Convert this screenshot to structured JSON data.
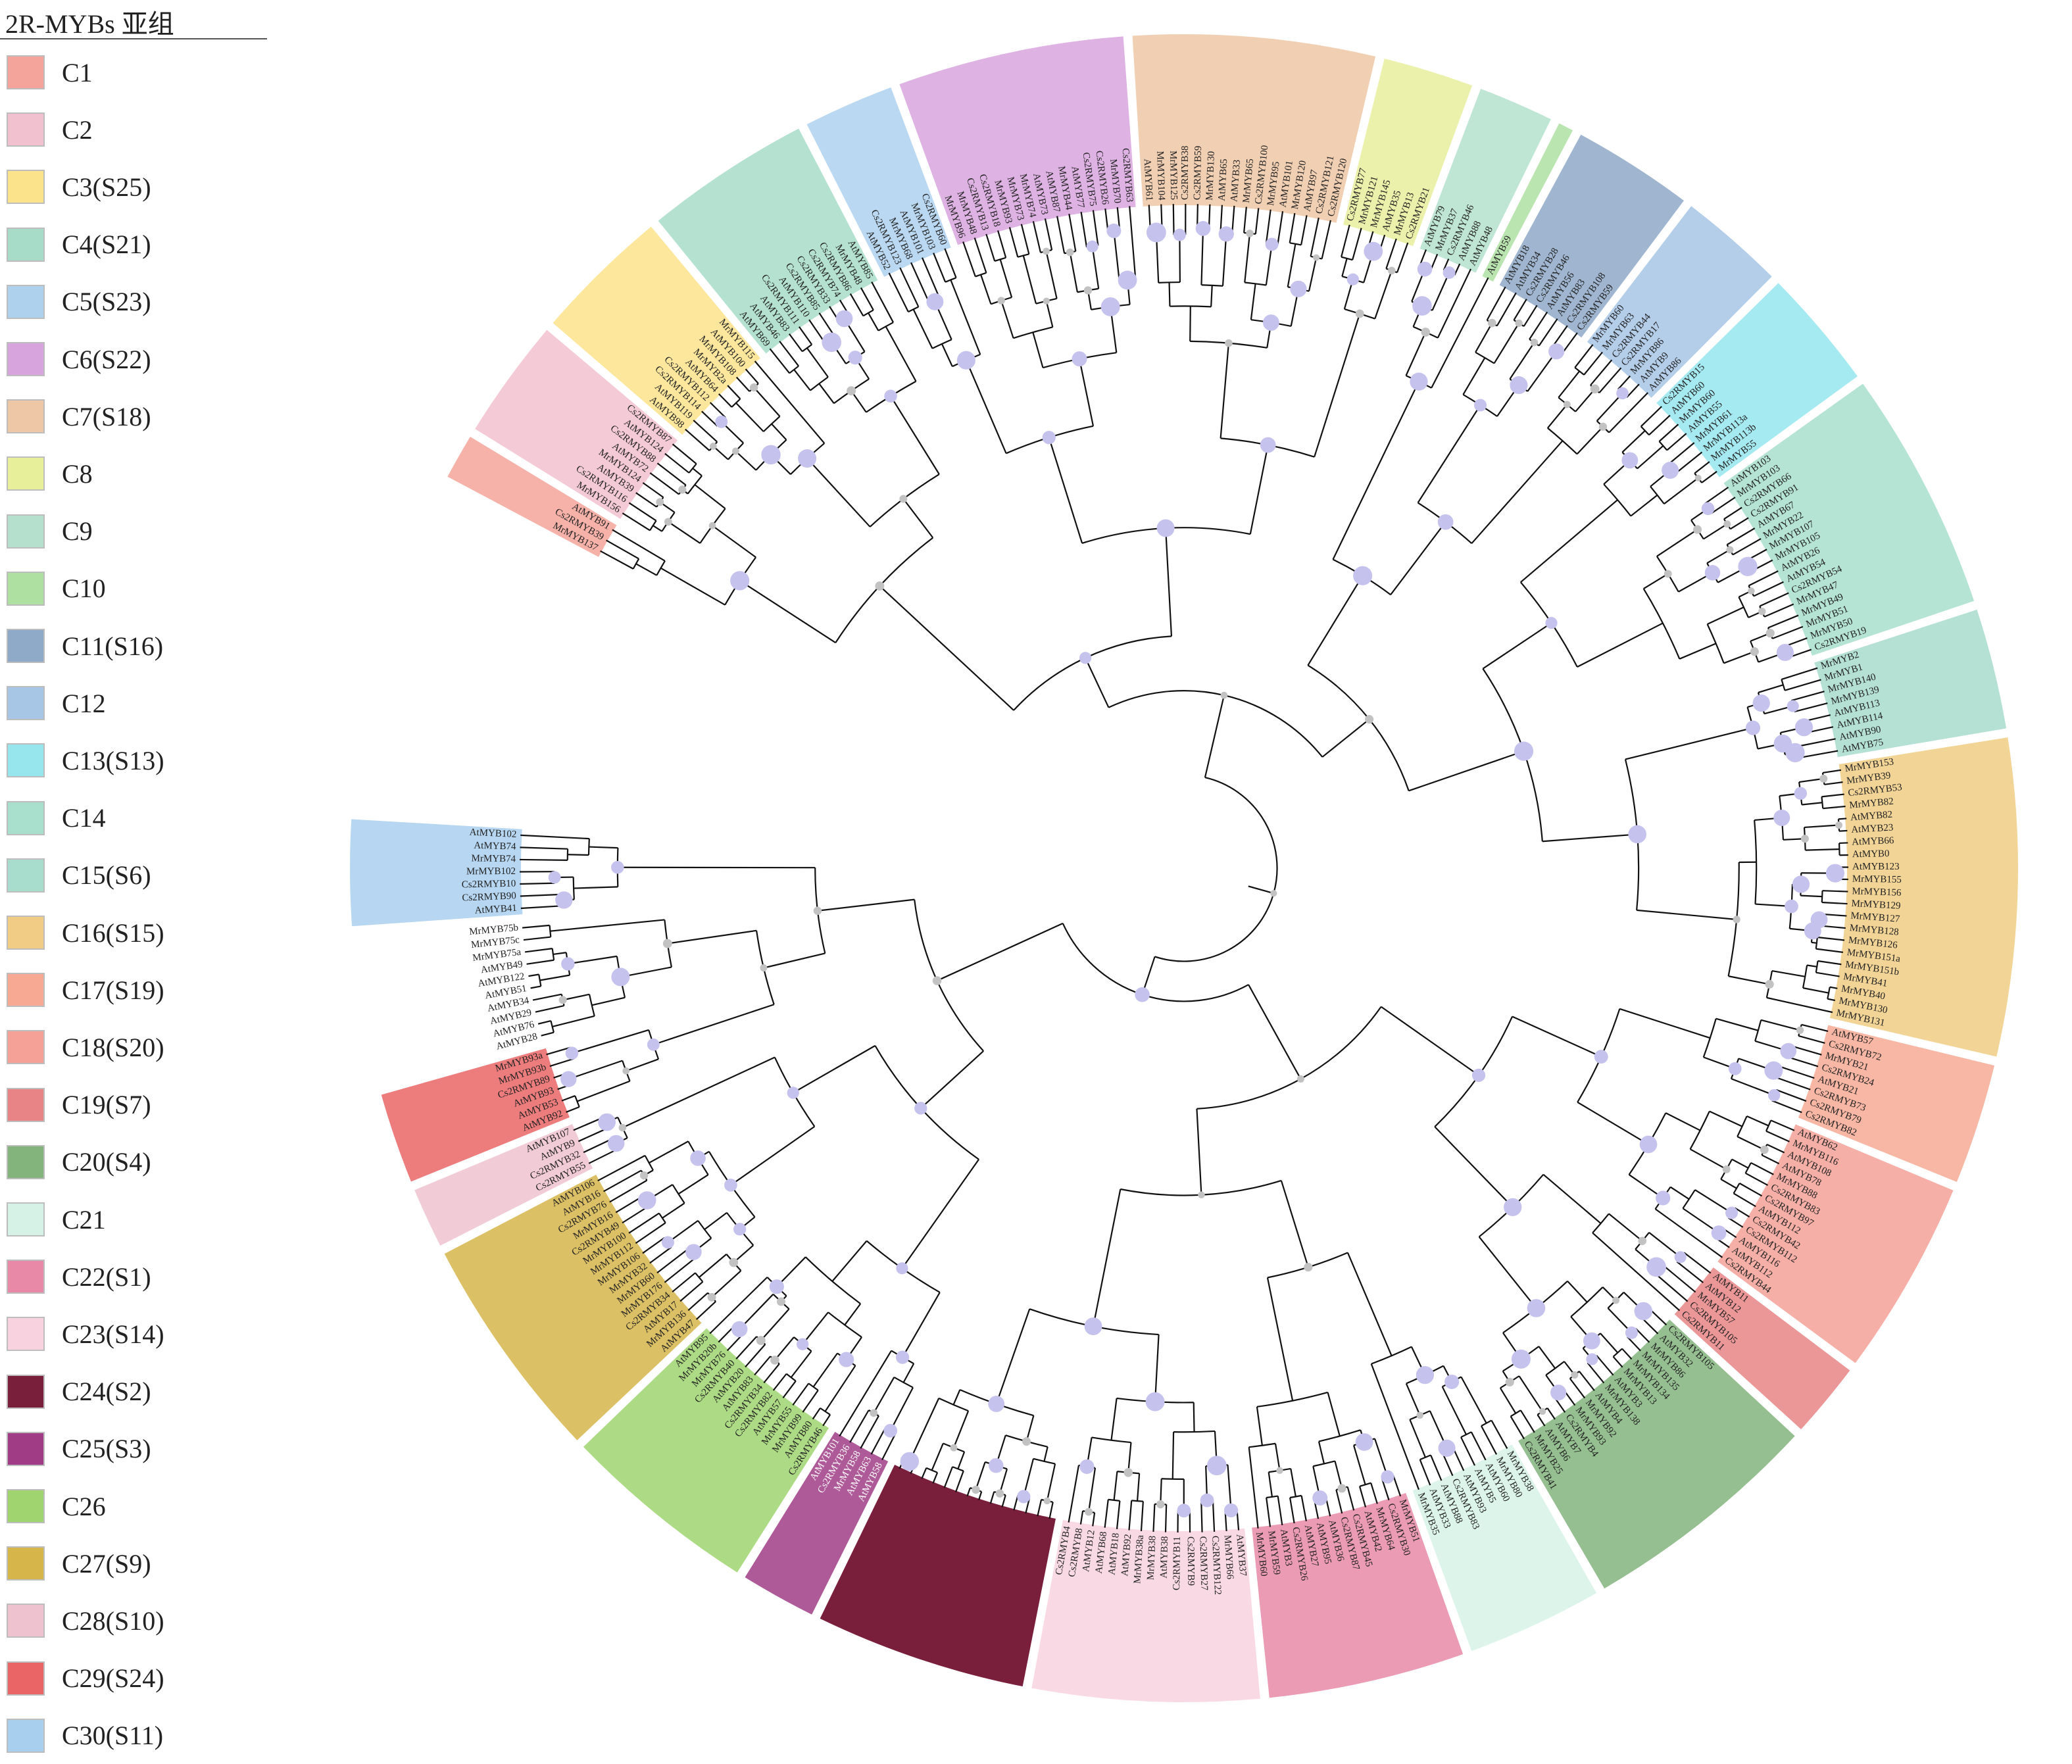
{
  "legend": {
    "title": "2R-MYBs 亚组",
    "items": [
      {
        "label": "C1",
        "color": "#f4a49a"
      },
      {
        "label": "C2",
        "color": "#f2c1cf"
      },
      {
        "label": "C3(S25)",
        "color": "#fbe38c"
      },
      {
        "label": "C4(S21)",
        "color": "#a7dcc8"
      },
      {
        "label": "C5(S23)",
        "color": "#aed1ee"
      },
      {
        "label": "C6(S22)",
        "color": "#d8a4de"
      },
      {
        "label": "C7(S18)",
        "color": "#eec7a6"
      },
      {
        "label": "C8",
        "color": "#e8ef9b"
      },
      {
        "label": "C9",
        "color": "#b4e0cd"
      },
      {
        "label": "C10",
        "color": "#aee0a2"
      },
      {
        "label": "C11(S16)",
        "color": "#8fa9c8"
      },
      {
        "label": "C12",
        "color": "#a7c6e6"
      },
      {
        "label": "C13(S13)",
        "color": "#97e6ee"
      },
      {
        "label": "C14",
        "color": "#a8dfcd"
      },
      {
        "label": "C15(S6)",
        "color": "#a8dccd"
      },
      {
        "label": "C16(S15)",
        "color": "#f0cc84"
      },
      {
        "label": "C17(S19)",
        "color": "#f7a994"
      },
      {
        "label": "C18(S20)",
        "color": "#f5a197"
      },
      {
        "label": "C19(S7)",
        "color": "#e88485"
      },
      {
        "label": "C20(S4)",
        "color": "#82b47c"
      },
      {
        "label": "C21",
        "color": "#d6f2e6"
      },
      {
        "label": "C22(S1)",
        "color": "#e88aa7"
      },
      {
        "label": "C23(S14)",
        "color": "#f8d3df"
      },
      {
        "label": "C24(S2)",
        "color": "#7a1f3b"
      },
      {
        "label": "C25(S3)",
        "color": "#a03c86"
      },
      {
        "label": "C26",
        "color": "#9fd46e"
      },
      {
        "label": "C27(S9)",
        "color": "#d6b54a"
      },
      {
        "label": "C28(S10)",
        "color": "#efc2cf"
      },
      {
        "label": "C29(S24)",
        "color": "#ea6566"
      },
      {
        "label": "C30(S11)",
        "color": "#a9cfef"
      }
    ]
  },
  "tree": {
    "branch_color": "#111111",
    "support_color_high": "#c5c3ee",
    "support_color_low": "#c2c2c2",
    "segments": [
      {
        "group": "C1",
        "labels": [
          "MrMYB137",
          "Cs2RMYB39",
          "AtMYB91"
        ]
      },
      {
        "group": "C2",
        "labels": [
          "MrMYB156",
          "Cs2RMYB116",
          "AtMYB39",
          "MrMYB124",
          "AtMYB72",
          "Cs2RMYB88",
          "AtMYB124",
          "Cs2RMYB87"
        ]
      },
      {
        "group": "C3(S25)",
        "labels": [
          "AtMYB98",
          "AtMYB119",
          "Cs2RMYB114",
          "Cs2RMYB112",
          "AtMYB64",
          "MrMYB2a",
          "MrMYB108",
          "AtMYB100",
          "MrMYB115"
        ]
      },
      {
        "group": "C4(S21)",
        "labels": [
          "AtMYB69",
          "AtMYB46",
          "AtMYB83",
          "Cs2RMYB111",
          "AtMYB110",
          "Cs2RMYB85",
          "Cs2RMYB33",
          "Cs2RMYB74",
          "Cs2RMYB86",
          "MrMYB48",
          "AtMYB85"
        ]
      },
      {
        "group": "C5(S23)",
        "labels": [
          "AtMYB52",
          "Cs2RMYB123",
          "MrMYB68",
          "AtMYB101",
          "MrMYB103",
          "Cs2RMYB60"
        ]
      },
      {
        "group": "C6(S22)",
        "labels": [
          "MrMYB96",
          "MrMYB48",
          "Cs2RMYB13",
          "Cs2RMYB18",
          "MrMYB93",
          "MrMYB73",
          "MrMYB74",
          "AtMYB73",
          "AtMYB87",
          "MrMYB44",
          "AtMYB77",
          "Cs2RMYB75",
          "Cs2RMYB26",
          "MrMYB70",
          "Cs2RMYB63"
        ]
      },
      {
        "group": "C7(S18)",
        "labels": [
          "AtMYB61",
          "MrMYB104",
          "MrMYB125",
          "Cs2RMYB38",
          "Cs2RMYB59",
          "MrMYB130",
          "AtMYB65",
          "AtMYB33",
          "MrMYB65",
          "Cs2RMYB100",
          "MrMYB95",
          "AtMYB101",
          "MrMYB120",
          "AtMYB97",
          "Cs2RMYB121",
          "Cs2RMYB120"
        ]
      },
      {
        "group": "C8",
        "labels": [
          "Cs2RMYB77",
          "MrMYB121",
          "MrMYB145",
          "AtMYB35",
          "MrMYB13",
          "Cs2RMYB21"
        ]
      },
      {
        "group": "C9",
        "labels": [
          "AtMYB79",
          "MrMYB37",
          "Cs2RMYB46",
          "AtMYB88",
          "AtMYB48"
        ]
      },
      {
        "group": "C10",
        "labels": [
          "AtMYB59"
        ]
      },
      {
        "group": "C11(S16)",
        "labels": [
          "AtMYB18",
          "AtMYB34",
          "Cs2RMYB28",
          "Cs2RMYB46",
          "AtMYB56",
          "AtMYB83",
          "Cs2RMYB108",
          "Cs2RMYB59"
        ]
      },
      {
        "group": "C12",
        "labels": [
          "MrMYB60",
          "MrMYB63",
          "Cs2RMYB44",
          "Cs2RMYB17",
          "MrMYB86",
          "AtMYB9",
          "AtMYB86"
        ]
      },
      {
        "group": "C13(S13)",
        "labels": [
          "Cs2RMYB15",
          "AtMYB60",
          "MrMYB60",
          "AtMYB55",
          "MrMYB61",
          "MrMYB113a",
          "MrMYB113b",
          "MrMYB55"
        ]
      },
      {
        "group": "C14",
        "labels": [
          "AtMYB103",
          "MrMYB103",
          "Cs2RMYB66",
          "Cs2RMYB91",
          "AtMYB67",
          "MrMYB22",
          "MrMYB107",
          "MrMYB105",
          "AtMYB26",
          "AtMYB54",
          "Cs2RMYB54",
          "MrMYB47",
          "MrMYB49",
          "MrMYB51",
          "MrMYB50",
          "Cs2RMYB19"
        ]
      },
      {
        "group": "C15(S6)",
        "labels": [
          "MrMYB2",
          "MrMYB1",
          "MrMYB140",
          "MrMYB139",
          "AtMYB113",
          "AtMYB114",
          "AtMYB90",
          "AtMYB75"
        ]
      },
      {
        "group": "C16(S15)",
        "labels": [
          "MrMYB153",
          "MrMYB39",
          "Cs2RMYB53",
          "MrMYB82",
          "AtMYB82",
          "AtMYB23",
          "AtMYB66",
          "AtMYB0",
          "AtMYB123",
          "MrMYB155",
          "MrMYB156",
          "MrMYB129",
          "MrMYB127",
          "MrMYB128",
          "MrMYB126",
          "MrMYB151a",
          "MrMYB151b",
          "MrMYB41",
          "MrMYB40",
          "MrMYB130",
          "MrMYB131"
        ]
      },
      {
        "group": "C17(S19)",
        "labels": [
          "AtMYB57",
          "Cs2RMYB72",
          "MrMYB21",
          "Cs2RMYB24",
          "AtMYB21",
          "Cs2RMYB73",
          "Cs2RMYB79",
          "Cs2RMYB82"
        ]
      },
      {
        "group": "C18(S20)",
        "labels": [
          "AtMYB62",
          "MrMYB116",
          "AtMYB108",
          "AtMYB78",
          "MrMYB88",
          "Cs2RMYB83",
          "Cs2RMYB97",
          "AtMYB112",
          "Cs2RMYB42",
          "Cs2RMYB112",
          "AtMYB116",
          "AtMYB112",
          "Cs2RMYB44"
        ]
      },
      {
        "group": "C19(S7)",
        "labels": [
          "AtMYB11",
          "AtMYB12",
          "MrMYB57",
          "Cs2RMYB105",
          "Cs2RMYB11"
        ]
      },
      {
        "group": "C20(S4)",
        "labels": [
          "Cs2RMYB105",
          "AtMYB32",
          "MrMYB86",
          "MrMYB135",
          "MrMYB134",
          "MrMYB13",
          "AtMYB3",
          "MrMYB138",
          "AtMYB4",
          "MrMYB92",
          "MrMYB93",
          "Cs2RMYB4",
          "AtMYB7",
          "AtMYB6",
          "MrMYB25",
          "Cs2RMYB41"
        ]
      },
      {
        "group": "C21",
        "labels": [
          "MrMYB38",
          "MrMYB80",
          "AtMYB60",
          "AtMYB5",
          "AtMYB93",
          "Cs2RMYB83",
          "AtMYB88",
          "AtMYB33",
          "MrMYB35"
        ]
      },
      {
        "group": "C22(S1)",
        "labels": [
          "MrMYB51",
          "Cs2RMYB30",
          "MrMYB64",
          "AtMYB42",
          "Cs2RMYB45",
          "Cs2RMYB87",
          "AtMYB36",
          "AtMYB95",
          "AtMYB27",
          "Cs2RMYB26",
          "AtMYB3",
          "MrMYB59",
          "MrMYB60"
        ]
      },
      {
        "group": "C23(S14)",
        "labels": [
          "AtMYB37",
          "MrMYB66",
          "Cs2RMYB122",
          "Cs2RMYB27",
          "Cs2RMYB9",
          "Cs2RMYB11",
          "AtMYB38",
          "MrMYB38",
          "MrMYB38a",
          "AtMYB92",
          "AtMYB18",
          "AtMYB68",
          "AtMYB12",
          "Cs2RMYB8",
          "Cs2RMYB4"
        ]
      },
      {
        "group": "C24(S2)",
        "labels": []
      },
      {
        "group": "C25(S3)",
        "labels": [
          "AtMYB58",
          "AtMYB63",
          "MrMYB58",
          "Cs2RMYB36",
          "AtMYB101"
        ]
      },
      {
        "group": "C26",
        "labels": [
          "Cs2RMYB46",
          "AtMYB80",
          "MrMYB99",
          "MrMYB55",
          "AtMYB57",
          "Cs2RMYB82",
          "Cs2RMYB34",
          "AtMYB83",
          "AtMYB20",
          "Cs2RMYB40",
          "MrMYB76",
          "MrMYB20b",
          "AtMYB95"
        ]
      },
      {
        "group": "C27(S9)",
        "labels": [
          "AtMYB47",
          "MrMYB136",
          "AtMYB17",
          "Cs2RMYB34",
          "MrMYB176",
          "MrMYB60",
          "MrMYB32",
          "MrMYB106",
          "MrMYB112",
          "MrMYB100",
          "Cs2RMYB49",
          "MrMYB16",
          "Cs2RMYB76",
          "AtMYB16",
          "AtMYB106"
        ]
      },
      {
        "group": "C28(S10)",
        "labels": [
          "Cs2RMYB55",
          "Cs2RMYB32",
          "AtMYB9",
          "AtMYB107"
        ]
      },
      {
        "group": "C29(S24)",
        "labels": [
          "AtMYB92",
          "AtMYB53",
          "AtMYB93",
          "Cs2RMYB89",
          "MrMYB93b",
          "MrMYB93a"
        ]
      },
      {
        "group": "",
        "labels": [
          "AtMYB28",
          "AtMYB76",
          "AtMYB29",
          "AtMYB34",
          "AtMYB51",
          "AtMYB122",
          "AtMYB49",
          "MrMYB75a",
          "MrMYB75c",
          "MrMYB75b"
        ]
      },
      {
        "group": "C30(S11)",
        "labels": [
          "AtMYB41",
          "Cs2RMYB90",
          "Cs2RMYB10",
          "MrMYB102",
          "MrMYB74",
          "AtMYB74",
          "AtMYB102"
        ]
      }
    ]
  }
}
